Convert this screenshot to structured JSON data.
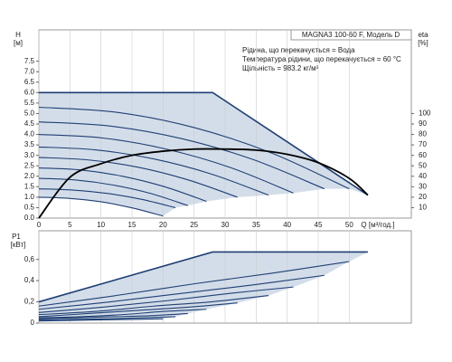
{
  "chart_data": [
    {
      "type": "line",
      "title": "MAGNA3 100-60 F, Модель D",
      "annotations": [
        "Рідина, що перекачується = Вода",
        "Температура рідини, що перекачується = 60 °C",
        "Щільність = 983.2 кг/м³"
      ],
      "ylabel": "H",
      "yunit": "[м]",
      "y2label": "eta",
      "y2unit": "[%]",
      "xlabel": "Q [м³/год.]",
      "xlim": [
        0,
        60
      ],
      "ylim": [
        0,
        9
      ],
      "y2lim": [
        0,
        180
      ],
      "xticks": [
        0,
        5,
        10,
        15,
        20,
        25,
        30,
        35,
        40,
        45,
        50
      ],
      "yticks": [
        {
          "value": 0,
          "label": "0.0"
        },
        {
          "value": 0.5,
          "label": "0.5"
        },
        {
          "value": 1,
          "label": "1.0"
        },
        {
          "value": 1.5,
          "label": "1.5"
        },
        {
          "value": 2,
          "label": "2.0"
        },
        {
          "value": 2.5,
          "label": "2.5"
        },
        {
          "value": 3,
          "label": "3.0"
        },
        {
          "value": 3.5,
          "label": "3.5"
        },
        {
          "value": 4,
          "label": "4.0"
        },
        {
          "value": 4.5,
          "label": "4.5"
        },
        {
          "value": 5,
          "label": "5.0"
        },
        {
          "value": 5.5,
          "label": "5.5"
        },
        {
          "value": 6,
          "label": "6.0"
        },
        {
          "value": 6.5,
          "label": "6.5"
        },
        {
          "value": 7,
          "label": "7.0"
        },
        {
          "value": 7.5,
          "label": "7.5"
        }
      ],
      "y2ticks": [
        10,
        20,
        30,
        40,
        50,
        60,
        70,
        80,
        90,
        100
      ],
      "grid": true,
      "color": "#1f3f74",
      "fill": "#d3dde9",
      "series": [
        {
          "x": [
            0,
            28,
            53
          ],
          "values": [
            6,
            6,
            1.1
          ]
        },
        {
          "x": [
            0,
            12.5,
            25,
            37.5,
            50
          ],
          "values": [
            5.3,
            5.06,
            4.33,
            3.11,
            1.4
          ]
        },
        {
          "x": [
            0,
            11.5,
            23,
            34.5,
            46
          ],
          "values": [
            4.6,
            4.4,
            3.8,
            2.8,
            1.4
          ]
        },
        {
          "x": [
            0,
            10.25,
            20.5,
            30.75,
            41
          ],
          "values": [
            4.0,
            3.83,
            3.3,
            2.43,
            1.2
          ]
        },
        {
          "x": [
            0,
            9.25,
            18.5,
            27.75,
            37
          ],
          "values": [
            3.4,
            3.26,
            2.83,
            2.11,
            1.1
          ]
        },
        {
          "x": [
            0,
            8,
            16,
            24,
            32
          ],
          "values": [
            2.9,
            2.78,
            2.43,
            1.83,
            1.0
          ]
        },
        {
          "x": [
            0,
            6.75,
            13.5,
            20.25,
            27
          ],
          "values": [
            2.4,
            2.3,
            2.0,
            1.5,
            0.8
          ]
        },
        {
          "x": [
            0,
            6,
            12,
            18,
            24
          ],
          "values": [
            1.9,
            1.82,
            1.58,
            1.18,
            0.6
          ]
        },
        {
          "x": [
            0,
            5.5,
            11,
            16.5,
            22
          ],
          "values": [
            1.4,
            1.34,
            1.18,
            0.9,
            0.5
          ]
        },
        {
          "x": [
            0,
            5,
            10,
            15,
            20
          ],
          "values": [
            1.0,
            0.94,
            0.78,
            0.49,
            0.1
          ]
        },
        {
          "x": [
            0,
            5,
            10,
            15,
            20,
            25,
            30,
            35,
            40,
            45,
            50,
            53
          ],
          "values": [
            0,
            39,
            52,
            60,
            64,
            66,
            66,
            65,
            61,
            53,
            38,
            22
          ],
          "axis": "y2",
          "color": "#000000"
        }
      ]
    },
    {
      "type": "line",
      "ylabel": "P1",
      "yunit": "[кВт]",
      "xlim": [
        0,
        60
      ],
      "ylim": [
        0,
        0.87
      ],
      "xticks": [
        0,
        5,
        10,
        15,
        20,
        25,
        30,
        35,
        40,
        45,
        50
      ],
      "yticks": [
        0,
        {
          "value": 0.2,
          "label": "0,2"
        },
        {
          "value": 0.4,
          "label": "0,4"
        },
        {
          "value": 0.6,
          "label": "0,6"
        }
      ],
      "grid": true,
      "color": "#1f3f74",
      "fill": "#d3dde9",
      "series": [
        {
          "x": [
            0,
            28,
            53
          ],
          "values": [
            0.2,
            0.67,
            0.67
          ]
        },
        {
          "x": [
            0,
            12.5,
            25,
            37.5,
            50
          ],
          "values": [
            0.16,
            0.26,
            0.37,
            0.47,
            0.58
          ]
        },
        {
          "x": [
            0,
            11.5,
            23,
            34.5,
            46
          ],
          "values": [
            0.13,
            0.2,
            0.28,
            0.36,
            0.45
          ]
        },
        {
          "x": [
            0,
            10.25,
            20.5,
            30.75,
            41
          ],
          "values": [
            0.1,
            0.15,
            0.21,
            0.28,
            0.34
          ]
        },
        {
          "x": [
            0,
            9.25,
            18.5,
            27.75,
            37
          ],
          "values": [
            0.08,
            0.11,
            0.16,
            0.2,
            0.26
          ]
        },
        {
          "x": [
            0,
            8,
            16,
            24,
            32
          ],
          "values": [
            0.06,
            0.09,
            0.12,
            0.15,
            0.19
          ]
        },
        {
          "x": [
            0,
            6.75,
            13.5,
            20.25,
            27
          ],
          "values": [
            0.05,
            0.06,
            0.08,
            0.11,
            0.13
          ]
        },
        {
          "x": [
            0,
            6,
            12,
            18,
            24
          ],
          "values": [
            0.04,
            0.05,
            0.06,
            0.07,
            0.09
          ]
        },
        {
          "x": [
            0,
            5.5,
            11,
            16.5,
            22
          ],
          "values": [
            0.03,
            0.035,
            0.04,
            0.05,
            0.06
          ]
        },
        {
          "x": [
            0,
            5,
            10,
            15,
            20
          ],
          "values": [
            0.02,
            0.025,
            0.03,
            0.035,
            0.04
          ]
        }
      ]
    }
  ]
}
